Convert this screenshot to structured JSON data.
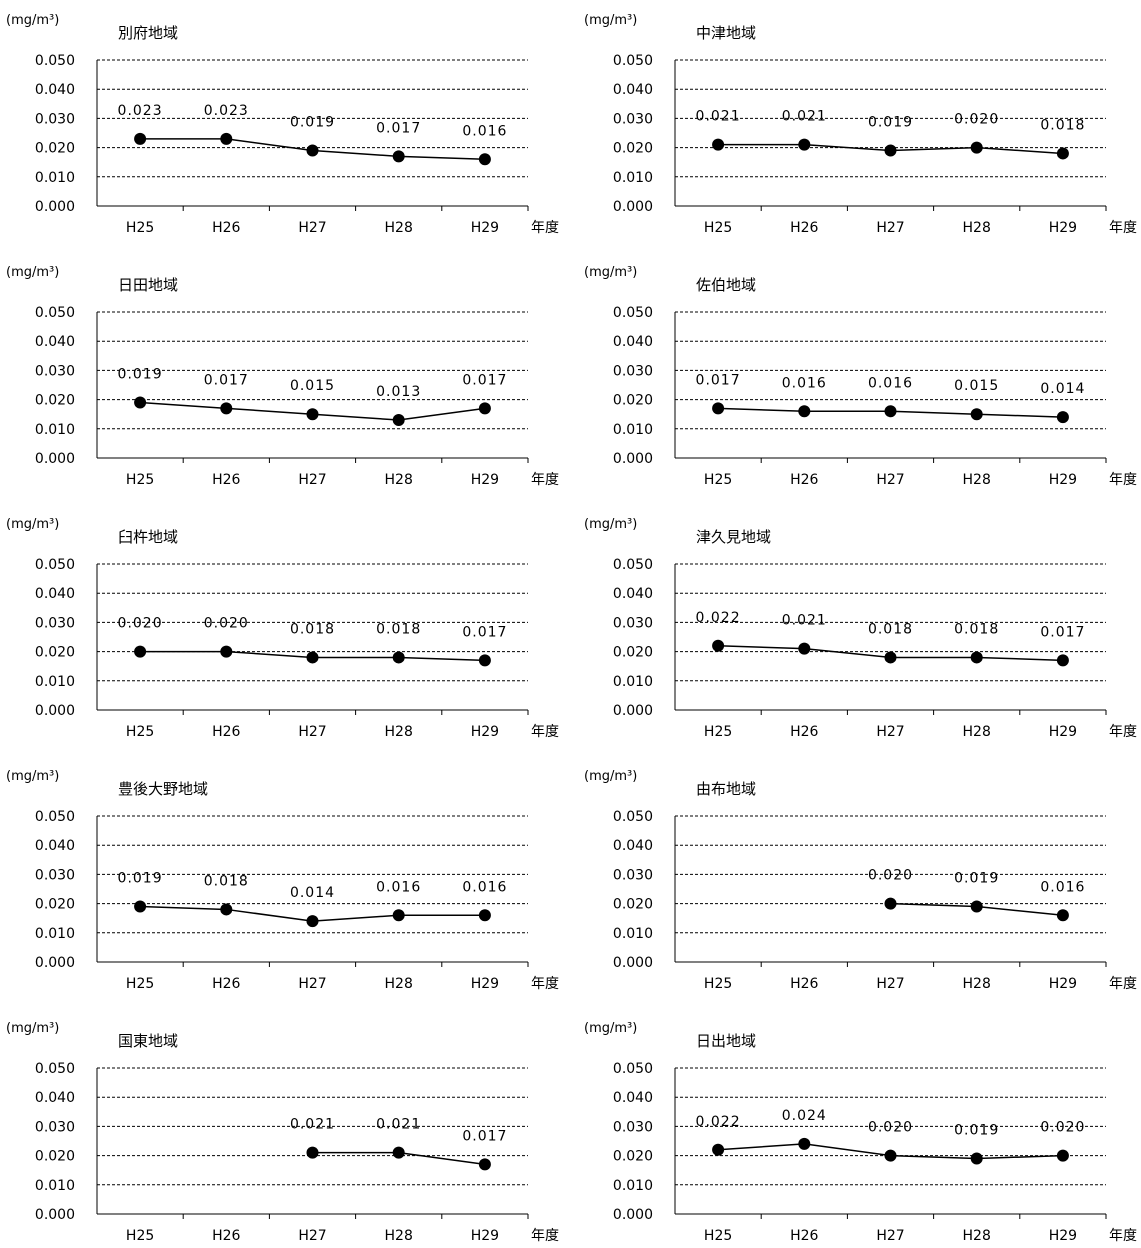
{
  "common": {
    "unit_label": "(mg/m³)",
    "x_axis_unit": "年度",
    "x_categories": [
      "H25",
      "H26",
      "H27",
      "H28",
      "H29"
    ],
    "y_ticks": [
      "0.050",
      "0.040",
      "0.030",
      "0.020",
      "0.010",
      "0.000"
    ]
  },
  "chart_data": [
    {
      "type": "line",
      "title": "別府地域",
      "categories": [
        "H25",
        "H26",
        "H27",
        "H28",
        "H29"
      ],
      "values": [
        0.023,
        0.023,
        0.019,
        0.017,
        0.016
      ],
      "labels": [
        "0.023",
        "0.023",
        "0.019",
        "0.017",
        "0.016"
      ],
      "ylim": [
        0,
        0.05
      ]
    },
    {
      "type": "line",
      "title": "中津地域",
      "categories": [
        "H25",
        "H26",
        "H27",
        "H28",
        "H29"
      ],
      "values": [
        0.021,
        0.021,
        0.019,
        0.02,
        0.018
      ],
      "labels": [
        "0.021",
        "0.021",
        "0.019",
        "0.020",
        "0.018"
      ],
      "ylim": [
        0,
        0.05
      ]
    },
    {
      "type": "line",
      "title": "日田地域",
      "categories": [
        "H25",
        "H26",
        "H27",
        "H28",
        "H29"
      ],
      "values": [
        0.019,
        0.017,
        0.015,
        0.013,
        0.017
      ],
      "labels": [
        "0.019",
        "0.017",
        "0.015",
        "0.013",
        "0.017"
      ],
      "ylim": [
        0,
        0.05
      ]
    },
    {
      "type": "line",
      "title": "佐伯地域",
      "categories": [
        "H25",
        "H26",
        "H27",
        "H28",
        "H29"
      ],
      "values": [
        0.017,
        0.016,
        0.016,
        0.015,
        0.014
      ],
      "labels": [
        "0.017",
        "0.016",
        "0.016",
        "0.015",
        "0.014"
      ],
      "ylim": [
        0,
        0.05
      ]
    },
    {
      "type": "line",
      "title": "臼杵地域",
      "categories": [
        "H25",
        "H26",
        "H27",
        "H28",
        "H29"
      ],
      "values": [
        0.02,
        0.02,
        0.018,
        0.018,
        0.017
      ],
      "labels": [
        "0.020",
        "0.020",
        "0.018",
        "0.018",
        "0.017"
      ],
      "ylim": [
        0,
        0.05
      ]
    },
    {
      "type": "line",
      "title": "津久見地域",
      "categories": [
        "H25",
        "H26",
        "H27",
        "H28",
        "H29"
      ],
      "values": [
        0.022,
        0.021,
        0.018,
        0.018,
        0.017
      ],
      "labels": [
        "0.022",
        "0.021",
        "0.018",
        "0.018",
        "0.017"
      ],
      "ylim": [
        0,
        0.05
      ]
    },
    {
      "type": "line",
      "title": "豊後大野地域",
      "categories": [
        "H25",
        "H26",
        "H27",
        "H28",
        "H29"
      ],
      "values": [
        0.019,
        0.018,
        0.014,
        0.016,
        0.016
      ],
      "labels": [
        "0.019",
        "0.018",
        "0.014",
        "0.016",
        "0.016"
      ],
      "ylim": [
        0,
        0.05
      ]
    },
    {
      "type": "line",
      "title": "由布地域",
      "categories": [
        "H25",
        "H26",
        "H27",
        "H28",
        "H29"
      ],
      "values": [
        null,
        null,
        0.02,
        0.019,
        0.016
      ],
      "labels": [
        "",
        "",
        "0.020",
        "0.019",
        "0.016"
      ],
      "ylim": [
        0,
        0.05
      ]
    },
    {
      "type": "line",
      "title": "国東地域",
      "categories": [
        "H25",
        "H26",
        "H27",
        "H28",
        "H29"
      ],
      "values": [
        null,
        null,
        0.021,
        0.021,
        0.017
      ],
      "labels": [
        "",
        "",
        "0.021",
        "0.021",
        "0.017"
      ],
      "ylim": [
        0,
        0.05
      ]
    },
    {
      "type": "line",
      "title": "日出地域",
      "categories": [
        "H25",
        "H26",
        "H27",
        "H28",
        "H29"
      ],
      "values": [
        0.022,
        0.024,
        0.02,
        0.019,
        0.02
      ],
      "labels": [
        "0.022",
        "0.024",
        "0.020",
        "0.019",
        "0.020"
      ],
      "ylim": [
        0,
        0.05
      ]
    }
  ]
}
